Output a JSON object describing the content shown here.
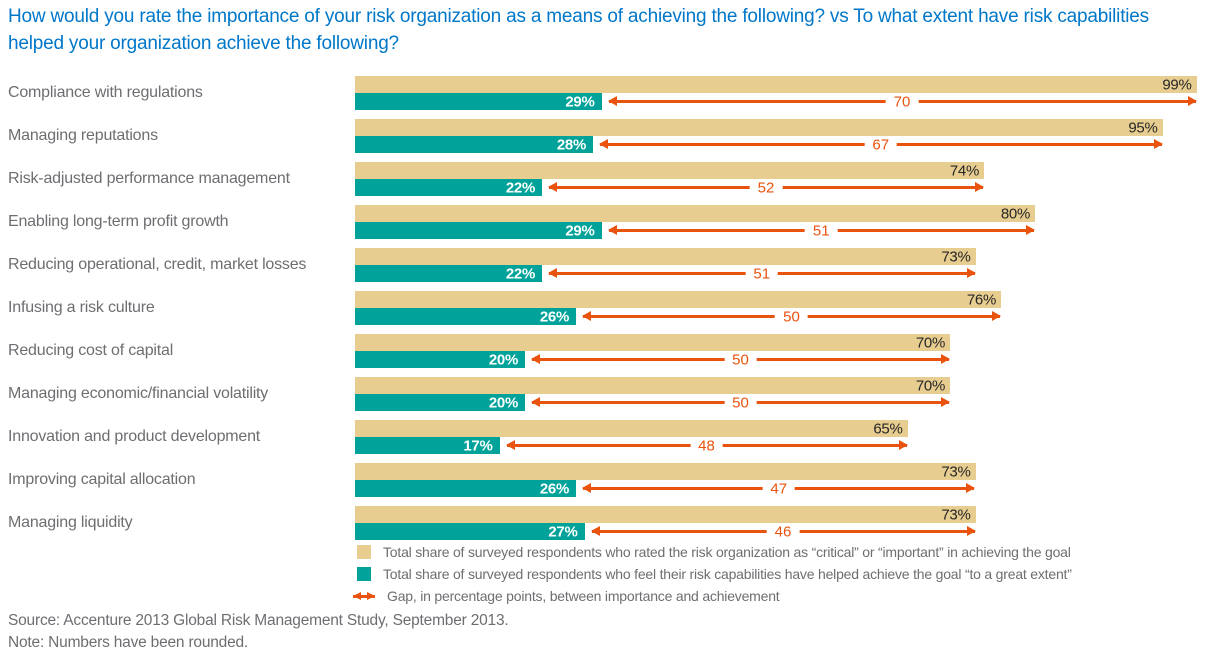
{
  "title": "How would you rate the importance of your risk organization as a means of achieving the following? vs To what extent have risk capabilities helped your organization achieve the following?",
  "chart_data": {
    "type": "bar",
    "orientation": "horizontal",
    "xlim": [
      0,
      100
    ],
    "value_suffix": "%",
    "grid": false,
    "legend_position": "bottom",
    "categories": [
      "Compliance with regulations",
      "Managing reputations",
      "Risk-adjusted performance management",
      "Enabling long-term profit growth",
      "Reducing operational, credit, market losses",
      "Infusing a risk culture",
      "Reducing cost of capital",
      "Managing economic/financial volatility",
      "Innovation and product development",
      "Improving capital allocation",
      "Managing liquidity"
    ],
    "series": [
      {
        "name": "Importance (rated critical or important)",
        "values": [
          99,
          95,
          74,
          80,
          73,
          76,
          70,
          70,
          65,
          73,
          73
        ],
        "color": "#E7CD90"
      },
      {
        "name": "Achievement (helped to a great extent)",
        "values": [
          29,
          28,
          22,
          29,
          22,
          26,
          20,
          20,
          17,
          26,
          27
        ],
        "color": "#00A29A"
      },
      {
        "name": "Gap (percentage points)",
        "values": [
          70,
          67,
          52,
          51,
          51,
          50,
          50,
          50,
          48,
          47,
          46
        ],
        "color": "#E9530E"
      }
    ]
  },
  "legend": {
    "items": [
      {
        "swatch": "tan-square",
        "label": "Total share of surveyed respondents who rated the risk organization as “critical” or “important” in achieving the goal"
      },
      {
        "swatch": "teal-square",
        "label": "Total share of surveyed respondents who feel their risk capabilities have helped achieve the goal “to a great extent”"
      },
      {
        "swatch": "orange-arrow",
        "label": "Gap, in percentage points, between importance and achievement"
      }
    ]
  },
  "footer": {
    "source": "Source: Accenture 2013 Global Risk Management Study, September 2013.",
    "note": "Note: Numbers have been rounded."
  },
  "colors": {
    "title": "#0077C9",
    "text_gray": "#6D6E71",
    "tan": "#E7CD90",
    "teal": "#00A29A",
    "orange": "#E9530E"
  }
}
